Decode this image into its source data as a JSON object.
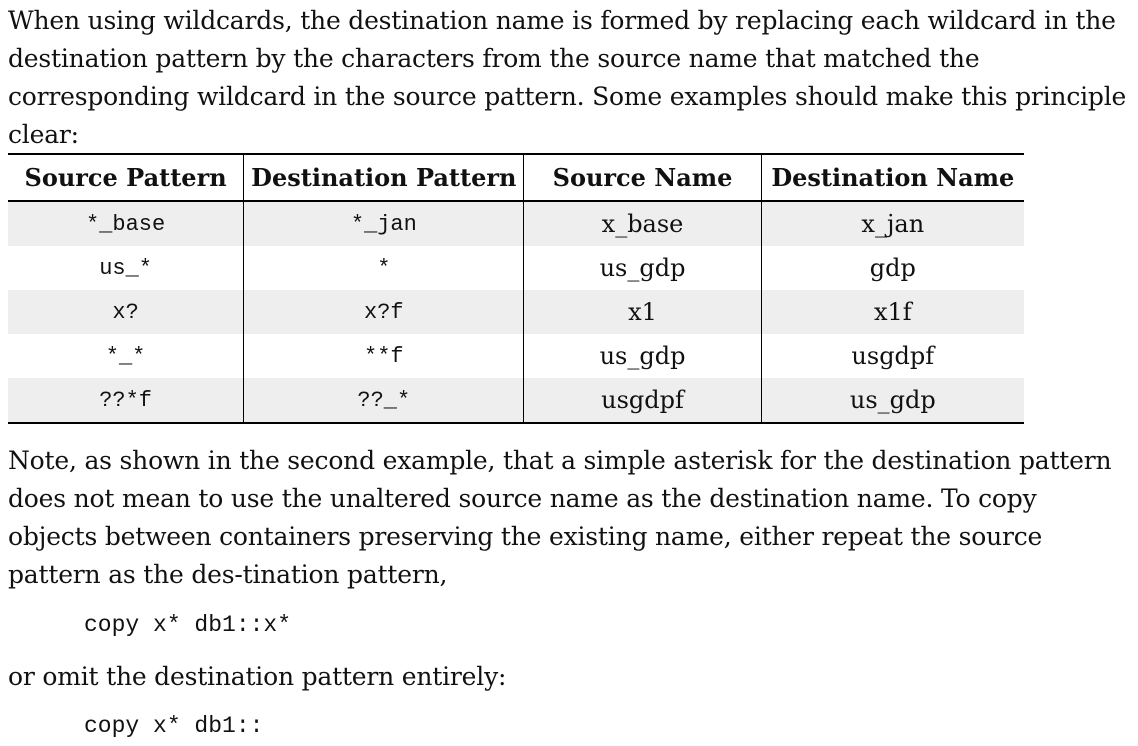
{
  "intro_text": "When using wildcards, the destination name is formed by replacing each wildcard in the destination pattern by the characters from the source name that matched the corresponding wildcard in the source pattern. Some examples should make this principle clear:",
  "table": {
    "headers": [
      "Source Pattern",
      "Destination Pattern",
      "Source Name",
      "Destination Name"
    ],
    "rows": [
      [
        "*_base",
        "*_jan",
        "x_base",
        "x_jan"
      ],
      [
        "us_*",
        "*",
        "us_gdp",
        "gdp"
      ],
      [
        "x?",
        "x?f",
        "x1",
        "x1f"
      ],
      [
        "*_*",
        "**f",
        "us_gdp",
        "usgdpf"
      ],
      [
        "??*f",
        "??_*",
        "usgdpf",
        "us_gdp"
      ]
    ]
  },
  "note_text": "Note, as shown in the second example, that a simple asterisk for the destination pattern does not mean to use the unaltered source name as the destination name. To copy objects between containers preserving the existing name, either repeat the source pattern as the des-tination pattern,",
  "code_example_1": "copy x* db1::x*",
  "omit_text": "or omit the destination pattern entirely:",
  "code_example_2": "copy x* db1::"
}
